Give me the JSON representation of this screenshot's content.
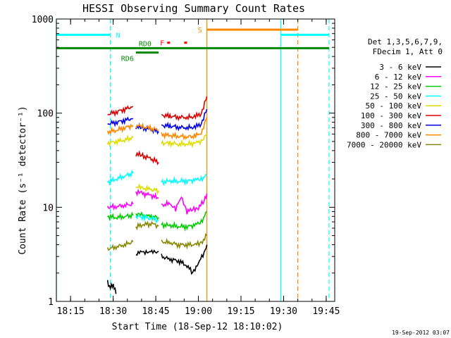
{
  "chart_data": {
    "type": "line",
    "title": "HESSI Observing Summary Count Rates",
    "xlabel": "Start Time (18-Sep-12 18:10:02)",
    "ylabel": "Count Rate (s⁻¹ detector⁻¹)",
    "xlim": [
      "18:10",
      "19:48"
    ],
    "ylim": [
      1,
      1000
    ],
    "y_scale": "log",
    "x_ticks": [
      "18:15",
      "18:30",
      "18:45",
      "19:00",
      "19:15",
      "19:30",
      "19:45"
    ],
    "y_ticks": [
      "1",
      "10",
      "100",
      "1000"
    ],
    "grid": false,
    "legend_position": "right",
    "legend_header": [
      "Det 1,3,5,6,7,9,",
      "FDecim 1, Att 0"
    ],
    "timestamp": "19-Sep-2012 03:07",
    "series": [
      {
        "name": "3 - 6 keV",
        "color": "#000000",
        "segments": [
          [
            [
              "18:28",
              1.6
            ],
            [
              "18:29",
              1.4
            ],
            [
              "18:30",
              1.5
            ],
            [
              "18:31",
              1.2
            ]
          ],
          [
            [
              "18:38",
              3.2
            ],
            [
              "18:40",
              3.3
            ],
            [
              "18:42",
              3.4
            ],
            [
              "18:44",
              3.3
            ],
            [
              "18:46",
              3.4
            ]
          ],
          [
            [
              "18:47",
              3.0
            ],
            [
              "18:50",
              2.8
            ],
            [
              "18:53",
              2.7
            ],
            [
              "18:56",
              2.4
            ],
            [
              "18:58",
              2.0
            ],
            [
              "19:00",
              2.6
            ],
            [
              "19:02",
              3.2
            ],
            [
              "19:03",
              4.0
            ]
          ]
        ]
      },
      {
        "name": "6 - 12 keV",
        "color": "#ff00ff",
        "segments": [
          [
            [
              "18:28",
              10.0
            ],
            [
              "18:31",
              10.2
            ],
            [
              "18:34",
              10.5
            ],
            [
              "18:37",
              10.8
            ]
          ],
          [
            [
              "18:38",
              14.5
            ],
            [
              "18:40",
              14.0
            ],
            [
              "18:43",
              13.5
            ],
            [
              "18:46",
              12.5
            ]
          ],
          [
            [
              "18:47",
              10.5
            ],
            [
              "18:50",
              11.0
            ],
            [
              "18:52",
              9.5
            ],
            [
              "18:54",
              13.0
            ],
            [
              "18:56",
              9.0
            ],
            [
              "18:58",
              9.5
            ],
            [
              "19:00",
              10.0
            ],
            [
              "19:02",
              11.5
            ],
            [
              "19:03",
              14.0
            ]
          ]
        ]
      },
      {
        "name": "12 - 25 keV",
        "color": "#00cc00",
        "segments": [
          [
            [
              "18:28",
              8.0
            ],
            [
              "18:31",
              7.8
            ],
            [
              "18:34",
              8.0
            ],
            [
              "18:37",
              8.2
            ]
          ],
          [
            [
              "18:38",
              8.5
            ],
            [
              "18:40",
              8.2
            ],
            [
              "18:43",
              8.0
            ],
            [
              "18:46",
              7.8
            ]
          ],
          [
            [
              "18:47",
              6.5
            ],
            [
              "18:50",
              6.4
            ],
            [
              "18:53",
              6.3
            ],
            [
              "18:56",
              6.2
            ],
            [
              "18:59",
              6.5
            ],
            [
              "19:01",
              7.0
            ],
            [
              "19:03",
              9.0
            ]
          ]
        ]
      },
      {
        "name": "25 - 50 keV",
        "color": "#00ffff",
        "segments": [
          [
            [
              "18:28",
              18.5
            ],
            [
              "18:31",
              20.0
            ],
            [
              "18:34",
              21.5
            ],
            [
              "18:37",
              23.0
            ]
          ],
          [
            [
              "18:38",
              8.0
            ],
            [
              "18:41",
              7.8
            ],
            [
              "18:44",
              7.5
            ],
            [
              "18:46",
              7.2
            ]
          ],
          [
            [
              "18:47",
              18.5
            ],
            [
              "18:50",
              19.0
            ],
            [
              "18:53",
              19.0
            ],
            [
              "18:56",
              19.0
            ],
            [
              "18:59",
              19.5
            ],
            [
              "19:01",
              20.0
            ],
            [
              "19:03",
              22.0
            ]
          ]
        ]
      },
      {
        "name": "50 - 100 keV",
        "color": "#dddd00",
        "segments": [
          [
            [
              "18:28",
              48.0
            ],
            [
              "18:31",
              50.0
            ],
            [
              "18:34",
              52.0
            ],
            [
              "18:37",
              55.0
            ]
          ],
          [
            [
              "18:38",
              16.5
            ],
            [
              "18:40",
              16.0
            ],
            [
              "18:43",
              15.5
            ],
            [
              "18:46",
              15.0
            ]
          ],
          [
            [
              "18:47",
              48.0
            ],
            [
              "18:50",
              48.0
            ],
            [
              "18:53",
              47.0
            ],
            [
              "18:56",
              47.0
            ],
            [
              "18:59",
              48.0
            ],
            [
              "19:01",
              51.0
            ],
            [
              "19:03",
              60.0
            ]
          ]
        ]
      },
      {
        "name": "100 - 300 keV",
        "color": "#dd0000",
        "segments": [
          [
            [
              "18:28",
              97.0
            ],
            [
              "18:31",
              103.0
            ],
            [
              "18:34",
              110.0
            ],
            [
              "18:37",
              118.0
            ]
          ],
          [
            [
              "18:38",
              37.0
            ],
            [
              "18:40",
              35.5
            ],
            [
              "18:43",
              33.0
            ],
            [
              "18:46",
              30.0
            ]
          ],
          [
            [
              "18:47",
              95.0
            ],
            [
              "18:50",
              93.0
            ],
            [
              "18:53",
              91.0
            ],
            [
              "18:56",
              90.0
            ],
            [
              "18:59",
              92.0
            ],
            [
              "19:01",
              100.0
            ],
            [
              "19:03",
              150.0
            ]
          ]
        ]
      },
      {
        "name": "300 - 800 keV",
        "color": "#0000ee",
        "segments": [
          [
            [
              "18:28",
              77.0
            ],
            [
              "18:31",
              80.0
            ],
            [
              "18:34",
              84.0
            ],
            [
              "18:37",
              88.0
            ]
          ],
          [
            [
              "18:38",
              72.0
            ],
            [
              "18:40",
              70.0
            ],
            [
              "18:43",
              67.0
            ],
            [
              "18:46",
              64.0
            ]
          ],
          [
            [
              "18:47",
              74.0
            ],
            [
              "18:50",
              73.0
            ],
            [
              "18:53",
              71.0
            ],
            [
              "18:56",
              70.0
            ],
            [
              "18:59",
              71.0
            ],
            [
              "19:01",
              78.0
            ],
            [
              "19:03",
              110.0
            ]
          ]
        ]
      },
      {
        "name": "800 - 7000 keV",
        "color": "#ff8800",
        "segments": [
          [
            [
              "18:28",
              63.0
            ],
            [
              "18:31",
              66.0
            ],
            [
              "18:34",
              70.0
            ],
            [
              "18:37",
              74.0
            ]
          ],
          [
            [
              "18:38",
              74.0
            ],
            [
              "18:40",
              72.0
            ],
            [
              "18:43",
              69.0
            ],
            [
              "18:46",
              66.0
            ]
          ],
          [
            [
              "18:47",
              59.0
            ],
            [
              "18:50",
              58.0
            ],
            [
              "18:53",
              57.0
            ],
            [
              "18:56",
              56.0
            ],
            [
              "18:59",
              57.0
            ],
            [
              "19:01",
              62.0
            ],
            [
              "19:03",
              90.0
            ]
          ]
        ]
      },
      {
        "name": "7000 - 20000 keV",
        "color": "#888800",
        "segments": [
          [
            [
              "18:28",
              3.6
            ],
            [
              "18:31",
              3.8
            ],
            [
              "18:34",
              4.0
            ],
            [
              "18:37",
              4.3
            ]
          ],
          [
            [
              "18:38",
              6.2
            ],
            [
              "18:41",
              6.6
            ],
            [
              "18:44",
              6.6
            ],
            [
              "18:46",
              6.3
            ]
          ],
          [
            [
              "18:47",
              4.3
            ],
            [
              "18:50",
              4.2
            ],
            [
              "18:53",
              4.0
            ],
            [
              "18:56",
              4.0
            ],
            [
              "18:59",
              4.0
            ],
            [
              "19:01",
              4.2
            ],
            [
              "19:03",
              5.0
            ]
          ]
        ]
      }
    ],
    "flag_bars": [
      {
        "label": "N",
        "color": "#00ffff",
        "y": 680,
        "spans": [
          [
            "18:10",
            "18:29"
          ],
          [
            "19:29",
            "19:46"
          ]
        ]
      },
      {
        "label": "S",
        "color": "#ff8800",
        "y": 770,
        "spans": [
          [
            "19:03",
            "19:35"
          ]
        ]
      },
      {
        "label": "F",
        "color": "#ff0000",
        "y": 560,
        "spans": [
          [
            "18:49",
            "18:50"
          ],
          [
            "18:55",
            "18:56"
          ]
        ]
      },
      {
        "label": "RD0",
        "color": "#008800",
        "y": 490,
        "spans": [
          [
            "18:10",
            "19:46"
          ]
        ]
      },
      {
        "label": "RD6",
        "color": "#008800",
        "y": 440,
        "spans": [
          [
            "18:38",
            "18:46"
          ]
        ]
      }
    ],
    "vertical_lines": [
      {
        "x": "18:10",
        "color": "#00ffff",
        "style": "solid"
      },
      {
        "x": "18:29",
        "color": "#00ffff",
        "style": "dashed"
      },
      {
        "x": "19:03",
        "color": "#ff8800",
        "style": "solid"
      },
      {
        "x": "19:29",
        "color": "#00ffff",
        "style": "solid"
      },
      {
        "x": "19:35",
        "color": "#ff8800",
        "style": "dashed"
      },
      {
        "x": "19:46",
        "color": "#00ffff",
        "style": "dashed"
      }
    ]
  }
}
